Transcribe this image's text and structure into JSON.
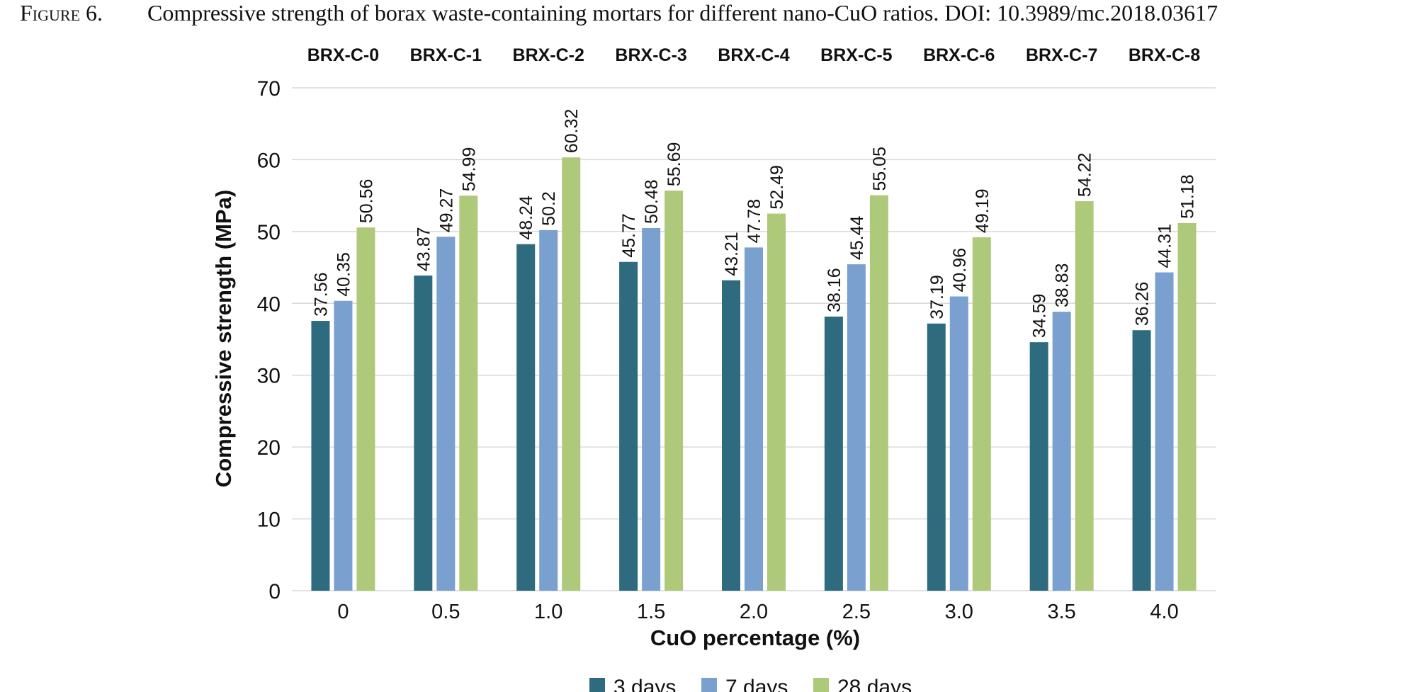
{
  "caption": {
    "figure_label": "Figure 6.",
    "text": "Compressive strength of borax waste-containing mortars for different nano-CuO ratios. DOI: 10.3989/mc.2018.03617"
  },
  "chart_data": {
    "type": "bar",
    "title": "",
    "xlabel": "CuO percentage (%)",
    "ylabel": "Compressive strength (MPa)",
    "ylim": [
      0,
      70
    ],
    "yticks": [
      0,
      10,
      20,
      30,
      40,
      50,
      60,
      70
    ],
    "grid": true,
    "legend_position": "bottom",
    "categories": [
      "0",
      "0.5",
      "1.0",
      "1.5",
      "2.0",
      "2.5",
      "3.0",
      "3.5",
      "4.0"
    ],
    "group_labels": [
      "BRX-C-0",
      "BRX-C-1",
      "BRX-C-2",
      "BRX-C-3",
      "BRX-C-4",
      "BRX-C-5",
      "BRX-C-6",
      "BRX-C-7",
      "BRX-C-8"
    ],
    "series": [
      {
        "name": "3 days",
        "color": "#2e6b7e",
        "values": [
          37.56,
          43.87,
          48.24,
          45.77,
          43.21,
          38.16,
          37.19,
          34.59,
          36.26
        ]
      },
      {
        "name": "7 days",
        "color": "#7aa0d0",
        "values": [
          40.35,
          49.27,
          50.2,
          50.48,
          47.78,
          45.44,
          40.96,
          38.83,
          44.31
        ]
      },
      {
        "name": "28 days",
        "color": "#afc97a",
        "values": [
          50.56,
          54.99,
          60.32,
          55.69,
          52.49,
          55.05,
          49.19,
          54.22,
          51.18
        ]
      }
    ],
    "grid_color": "#d9d9d9"
  }
}
